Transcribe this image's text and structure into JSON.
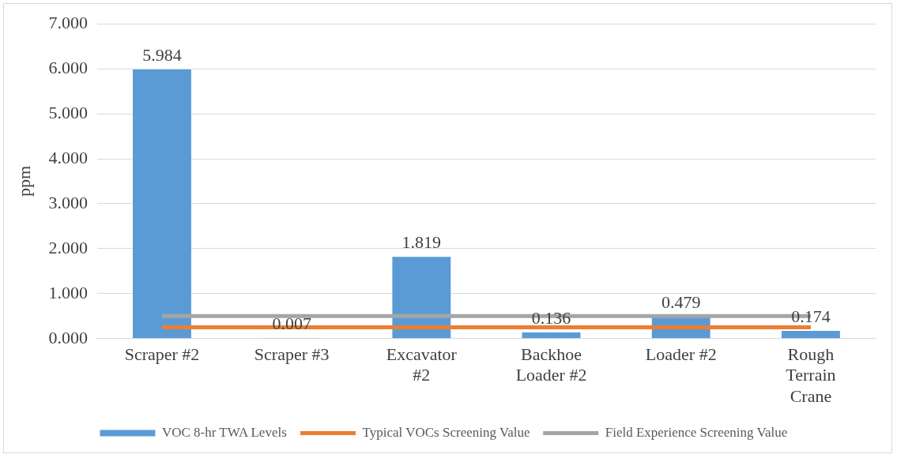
{
  "chart_data": {
    "type": "bar",
    "ylabel": "ppm",
    "categories": [
      "Scraper #2",
      "Scraper #3",
      "Excavator #2",
      "Backhoe Loader #2",
      "Loader #2",
      "Rough Terrain Crane"
    ],
    "series": [
      {
        "name": "VOC 8-hr TWA Levels",
        "color": "#5b9bd5",
        "values": [
          5.984,
          0.007,
          1.819,
          0.136,
          0.479,
          0.174
        ],
        "value_labels": [
          "5.984",
          "0.007",
          "1.819",
          "0.136",
          "0.479",
          "0.174"
        ]
      },
      {
        "name": "Typical VOCs Screening Value",
        "type": "line",
        "color": "#ed7d31",
        "values": [
          0.25,
          0.25,
          0.25,
          0.25,
          0.25,
          0.25
        ]
      },
      {
        "name": "Field Experience Screening Value",
        "type": "line",
        "color": "#a5a5a5",
        "values": [
          0.5,
          0.5,
          0.5,
          0.5,
          0.5,
          0.5
        ]
      }
    ],
    "ylim": [
      0,
      7
    ],
    "yticks": [
      {
        "value": 0,
        "label": "0.000"
      },
      {
        "value": 1,
        "label": "1.000"
      },
      {
        "value": 2,
        "label": "2.000"
      },
      {
        "value": 3,
        "label": "3.000"
      },
      {
        "value": 4,
        "label": "4.000"
      },
      {
        "value": 5,
        "label": "5.000"
      },
      {
        "value": 6,
        "label": "6.000"
      },
      {
        "value": 7,
        "label": "7.000"
      }
    ],
    "grid": "y",
    "legend": "bottom",
    "marker": "none"
  }
}
